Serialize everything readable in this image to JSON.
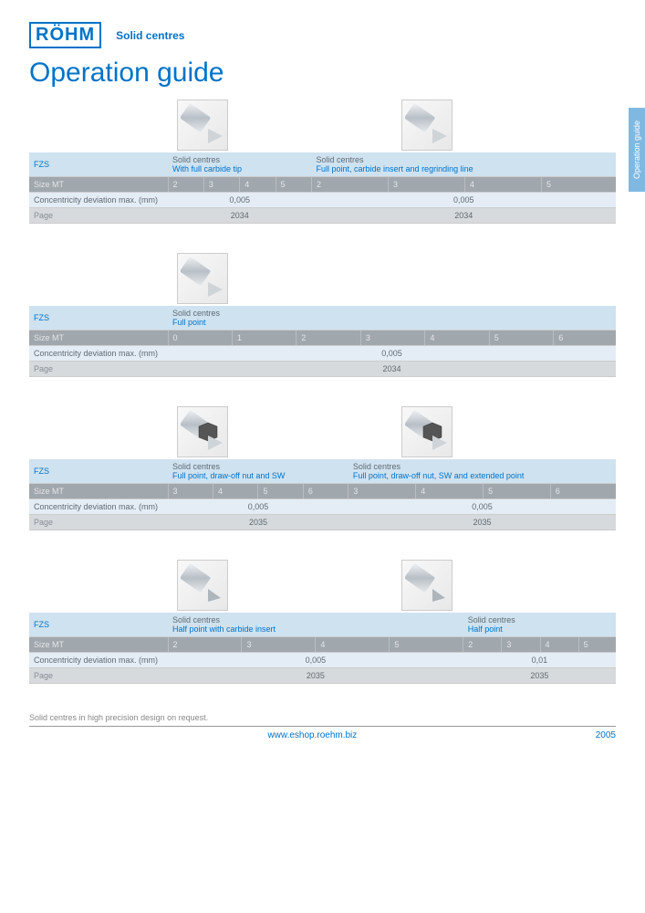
{
  "header": {
    "logo": "RÖHM",
    "subtitle": "Solid centres"
  },
  "title": "Operation guide",
  "side_tab": "Operation guide",
  "labels": {
    "size_mt": "Size MT",
    "conc": "Concentricity deviation max. (mm)",
    "page": "Page"
  },
  "blocks": [
    {
      "code": "FZS",
      "columns": 2,
      "cells": [
        {
          "line1": "Solid centres",
          "line2": "With full carbide tip",
          "sizes": [
            "2",
            "3",
            "4",
            "5"
          ],
          "conc": "0,005",
          "page": "2034"
        },
        {
          "line1": "Solid centres",
          "line2": "Full point, carbide insert and regrinding line",
          "sizes": [
            "2",
            "3",
            "4",
            "5"
          ],
          "conc": "0,005",
          "page": "2034"
        }
      ]
    },
    {
      "code": "FZS",
      "columns": 1,
      "cells": [
        {
          "line1": "Solid centres",
          "line2": "Full point",
          "sizes": [
            "0",
            "1",
            "2",
            "3",
            "4",
            "5",
            "6"
          ],
          "conc": "0,005",
          "page": "2034"
        }
      ]
    },
    {
      "code": "FZS",
      "columns": 2,
      "cells": [
        {
          "line1": "Solid centres",
          "line2": "Full point, draw-off nut and SW",
          "sizes": [
            "3",
            "4",
            "5",
            "6"
          ],
          "conc": "0,005",
          "page": "2035"
        },
        {
          "line1": "Solid centres",
          "line2": "Full point, draw-off nut, SW and extended point",
          "sizes": [
            "3",
            "4",
            "5",
            "6"
          ],
          "conc": "0,005",
          "page": "2035"
        }
      ]
    },
    {
      "code": "FZS",
      "columns": 2,
      "cells": [
        {
          "line1": "Solid centres",
          "line2": "Half point with carbide insert",
          "sizes": [
            "2",
            "3",
            "4",
            "5"
          ],
          "conc": "0,005",
          "page": "2035"
        },
        {
          "line1": "Solid centres",
          "line2": "Half point",
          "sizes": [
            "2",
            "3",
            "4",
            "5"
          ],
          "conc": "0,01",
          "page": "2035"
        }
      ]
    }
  ],
  "footer": {
    "note": "Solid centres in high precision design on request.",
    "link": "www.eshop.roehm.biz",
    "pagenum": "2005"
  },
  "colors": {
    "brand": "#0073c8",
    "row_desc_bg": "#cfe2f0",
    "row_size_bg": "#a0a7ad",
    "row_conc_bg": "#e4edf5",
    "row_page_bg": "#d7dadd"
  }
}
